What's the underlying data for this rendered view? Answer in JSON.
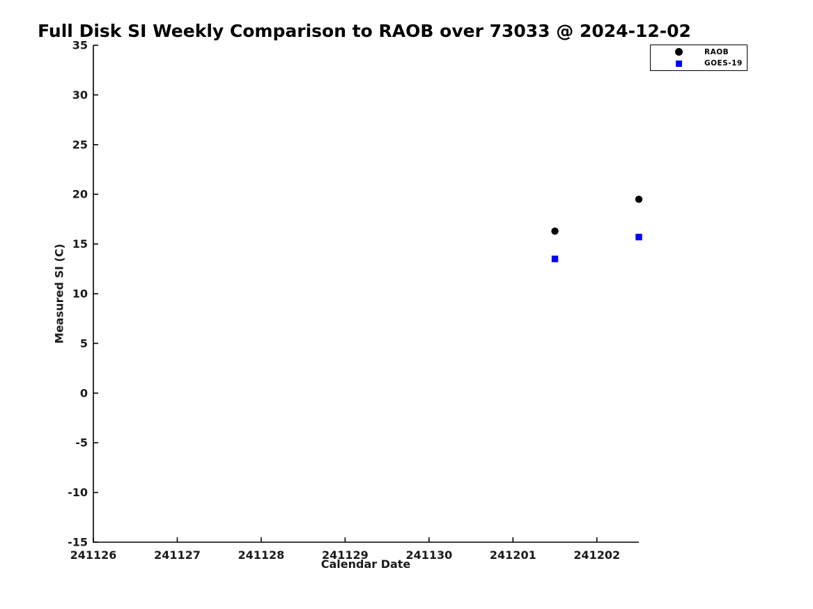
{
  "chart_data": {
    "type": "scatter",
    "title": "Full Disk SI Weekly Comparison to RAOB over 73033 @ 2024-12-02",
    "xlabel": "Calendar Date",
    "ylabel": "Measured SI (C)",
    "x_tick_labels": [
      "241126",
      "241127",
      "241128",
      "241129",
      "241130",
      "241201",
      "241202"
    ],
    "y_ticks": [
      -15,
      -10,
      -5,
      0,
      5,
      10,
      15,
      20,
      25,
      30,
      35
    ],
    "xlim": [
      241126,
      241202.5
    ],
    "ylim": [
      -15,
      35
    ],
    "grid": false,
    "legend_position": "top-right-outside",
    "background_color": "#ffffff",
    "axis_color": "#000000",
    "series": [
      {
        "name": "RAOB",
        "marker": "circle",
        "color": "#000000",
        "points": [
          {
            "x": 241201.5,
            "y": 16.3
          },
          {
            "x": 241202.5,
            "y": 19.5
          }
        ]
      },
      {
        "name": "GOES-19",
        "marker": "square",
        "color": "#0000ff",
        "points": [
          {
            "x": 241201.5,
            "y": 13.5
          },
          {
            "x": 241202.5,
            "y": 15.7
          }
        ]
      }
    ]
  }
}
